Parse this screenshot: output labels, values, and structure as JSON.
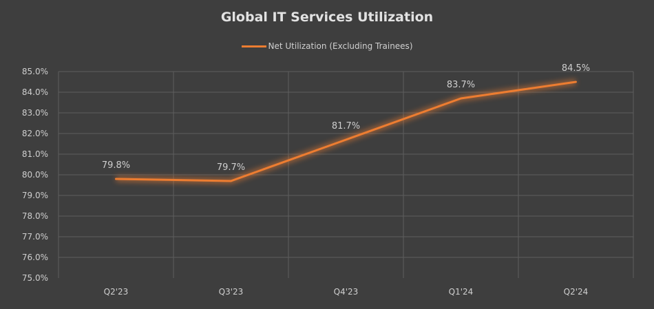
{
  "chart_data": {
    "type": "line",
    "title": "Global IT Services Utilization",
    "categories": [
      "Q2'23",
      "Q3'23",
      "Q4'23",
      "Q1'24",
      "Q2'24"
    ],
    "series": [
      {
        "name": "Net Utilization (Excluding Trainees)",
        "values": [
          79.8,
          79.7,
          81.7,
          83.7,
          84.5
        ],
        "color": "#ed7d31"
      }
    ],
    "data_labels": [
      "79.8%",
      "79.7%",
      "81.7%",
      "83.7%",
      "84.5%"
    ],
    "ylim": [
      75,
      85
    ],
    "yticks": [
      "75.0%",
      "76.0%",
      "77.0%",
      "78.0%",
      "79.0%",
      "80.0%",
      "81.0%",
      "82.0%",
      "83.0%",
      "84.0%",
      "85.0%"
    ],
    "grid": true,
    "legend_position": "top",
    "colors": {
      "background": "#3e3e3e",
      "grid": "#565656",
      "text": "#cfcfcf"
    }
  }
}
